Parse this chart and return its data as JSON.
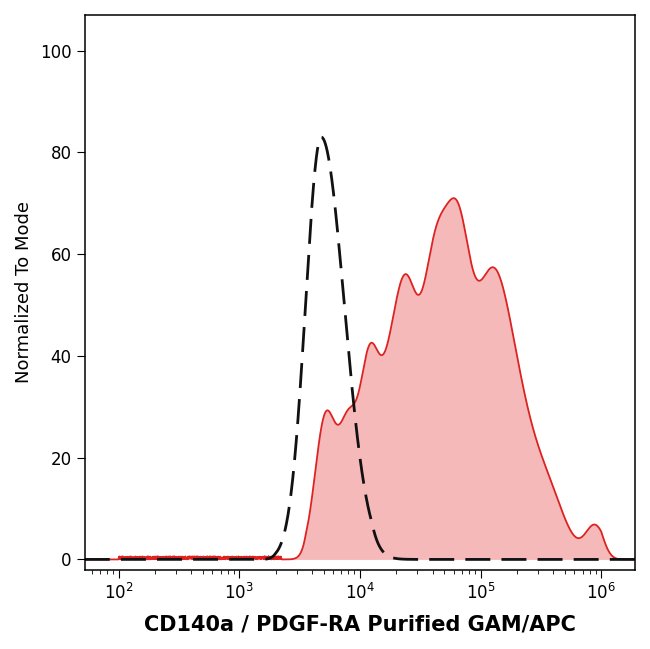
{
  "title": "",
  "xlabel": "CD140a / PDGF-RA Purified GAM/APC",
  "ylabel": "Normalized To Mode",
  "xlim_log": [
    1.72,
    6.28
  ],
  "ylim": [
    -2,
    107
  ],
  "yticks": [
    0,
    20,
    40,
    60,
    80,
    100
  ],
  "background_color": "#ffffff",
  "red_fill_color": "#f08080",
  "red_line_color": "#dd2222",
  "red_fill_alpha": 0.55,
  "dashed_color": "#111111",
  "xlabel_fontsize": 15,
  "ylabel_fontsize": 13,
  "tick_fontsize": 12,
  "fig_width": 6.5,
  "fig_height": 6.49,
  "dpi": 100
}
